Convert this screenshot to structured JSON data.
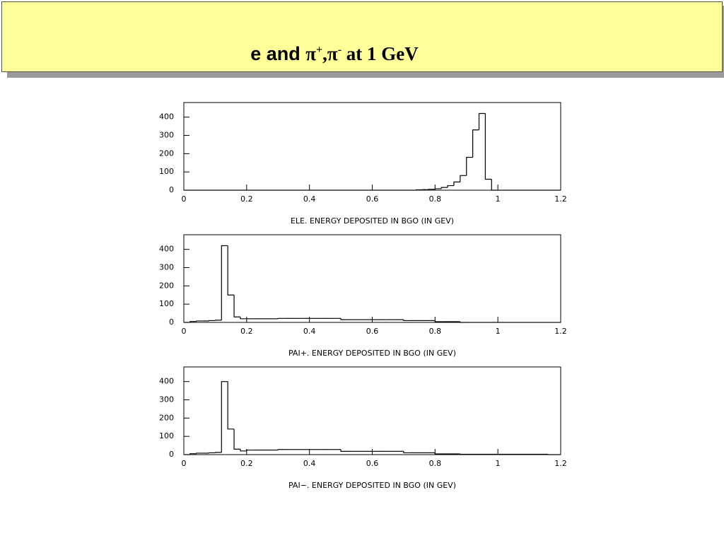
{
  "title": [
    "e and ",
    "π",
    "+",
    ",π",
    "-",
    " at 1 GeV"
  ],
  "chart_data": [
    {
      "type": "histogram",
      "color": "#000000",
      "bins": [
        0,
        0.02,
        0.04,
        0.06,
        0.08,
        0.1,
        0.12,
        0.14,
        0.16,
        0.18,
        0.2,
        0.22,
        0.24,
        0.26,
        0.28,
        0.3,
        0.32,
        0.34,
        0.36,
        0.38,
        0.4,
        0.42,
        0.44,
        0.46,
        0.48,
        0.5,
        0.52,
        0.54,
        0.56,
        0.58,
        0.6,
        0.62,
        0.64,
        0.66,
        0.68,
        0.7,
        0.72,
        0.74,
        0.76,
        0.78,
        0.8,
        0.82,
        0.84,
        0.86,
        0.88,
        0.9,
        0.92,
        0.94,
        0.96,
        0.98,
        1,
        1.02,
        1.04,
        1.06,
        1.08,
        1.1,
        1.12,
        1.14,
        1.16,
        1.18,
        1.2
      ],
      "values": [
        0,
        0,
        0,
        0,
        0,
        0,
        0,
        0,
        0,
        0,
        0,
        0,
        0,
        0,
        0,
        0,
        0,
        0,
        0,
        0,
        0,
        0,
        0,
        0,
        0,
        0,
        0,
        0,
        0,
        0,
        0,
        0,
        0,
        0,
        0,
        0,
        0,
        2,
        3,
        5,
        8,
        15,
        25,
        45,
        80,
        180,
        330,
        420,
        60,
        0,
        0,
        0,
        0,
        0,
        0,
        0,
        0,
        0,
        0,
        0
      ],
      "xlim": [
        0,
        1.2
      ],
      "ylim": [
        0,
        480
      ],
      "xticks": [
        0,
        0.2,
        0.4,
        0.6,
        0.8,
        1,
        1.2
      ],
      "yticks": [
        0,
        100,
        200,
        300,
        400
      ],
      "xlabel": "ELE. ENERGY DEPOSITED IN BGO (IN GEV)"
    },
    {
      "type": "histogram",
      "color": "#000000",
      "bins": [
        0,
        0.02,
        0.04,
        0.06,
        0.08,
        0.1,
        0.12,
        0.14,
        0.16,
        0.18,
        0.2,
        0.22,
        0.24,
        0.26,
        0.28,
        0.3,
        0.32,
        0.34,
        0.36,
        0.38,
        0.4,
        0.42,
        0.44,
        0.46,
        0.48,
        0.5,
        0.52,
        0.54,
        0.56,
        0.58,
        0.6,
        0.62,
        0.64,
        0.66,
        0.68,
        0.7,
        0.72,
        0.74,
        0.76,
        0.78,
        0.8,
        0.82,
        0.84,
        0.86,
        0.88,
        0.9,
        0.92,
        0.94,
        0.96,
        0.98,
        1,
        1.02,
        1.04,
        1.06,
        1.08,
        1.1,
        1.12,
        1.14,
        1.16,
        1.18,
        1.2
      ],
      "values": [
        0,
        5,
        8,
        8,
        10,
        12,
        420,
        150,
        30,
        20,
        20,
        20,
        20,
        20,
        20,
        22,
        22,
        22,
        22,
        22,
        22,
        22,
        22,
        22,
        22,
        15,
        15,
        15,
        15,
        15,
        15,
        15,
        15,
        15,
        15,
        10,
        10,
        10,
        10,
        10,
        4,
        4,
        4,
        4,
        0,
        0,
        0,
        0,
        0,
        0,
        0,
        0,
        0,
        0,
        0,
        0,
        0,
        0,
        0,
        0
      ],
      "xlim": [
        0,
        1.2
      ],
      "ylim": [
        0,
        480
      ],
      "xticks": [
        0,
        0.2,
        0.4,
        0.6,
        0.8,
        1,
        1.2
      ],
      "yticks": [
        0,
        100,
        200,
        300,
        400
      ],
      "xlabel": "PAI+. ENERGY DEPOSITED IN BGO (IN GEV)"
    },
    {
      "type": "histogram",
      "color": "#000000",
      "bins": [
        0,
        0.02,
        0.04,
        0.06,
        0.08,
        0.1,
        0.12,
        0.14,
        0.16,
        0.18,
        0.2,
        0.22,
        0.24,
        0.26,
        0.28,
        0.3,
        0.32,
        0.34,
        0.36,
        0.38,
        0.4,
        0.42,
        0.44,
        0.46,
        0.48,
        0.5,
        0.52,
        0.54,
        0.56,
        0.58,
        0.6,
        0.62,
        0.64,
        0.66,
        0.68,
        0.7,
        0.72,
        0.74,
        0.76,
        0.78,
        0.8,
        0.82,
        0.84,
        0.86,
        0.88,
        0.9,
        0.92,
        0.94,
        0.96,
        0.98,
        1,
        1.02,
        1.04,
        1.06,
        1.08,
        1.1,
        1.12,
        1.14,
        1.16,
        1.18,
        1.2
      ],
      "values": [
        0,
        5,
        8,
        8,
        10,
        12,
        400,
        140,
        30,
        20,
        25,
        25,
        25,
        25,
        25,
        28,
        28,
        28,
        28,
        28,
        28,
        28,
        28,
        28,
        28,
        18,
        18,
        18,
        18,
        18,
        18,
        18,
        18,
        18,
        18,
        10,
        10,
        10,
        10,
        10,
        4,
        4,
        4,
        4,
        2,
        2,
        2,
        2,
        2,
        2,
        2,
        2,
        2,
        2,
        2,
        2,
        2,
        2,
        0,
        0
      ],
      "xlim": [
        0,
        1.2
      ],
      "ylim": [
        0,
        480
      ],
      "xticks": [
        0,
        0.2,
        0.4,
        0.6,
        0.8,
        1,
        1.2
      ],
      "yticks": [
        0,
        100,
        200,
        300,
        400
      ],
      "xlabel": "PAI−. ENERGY DEPOSITED IN BGO (IN GEV)"
    }
  ]
}
